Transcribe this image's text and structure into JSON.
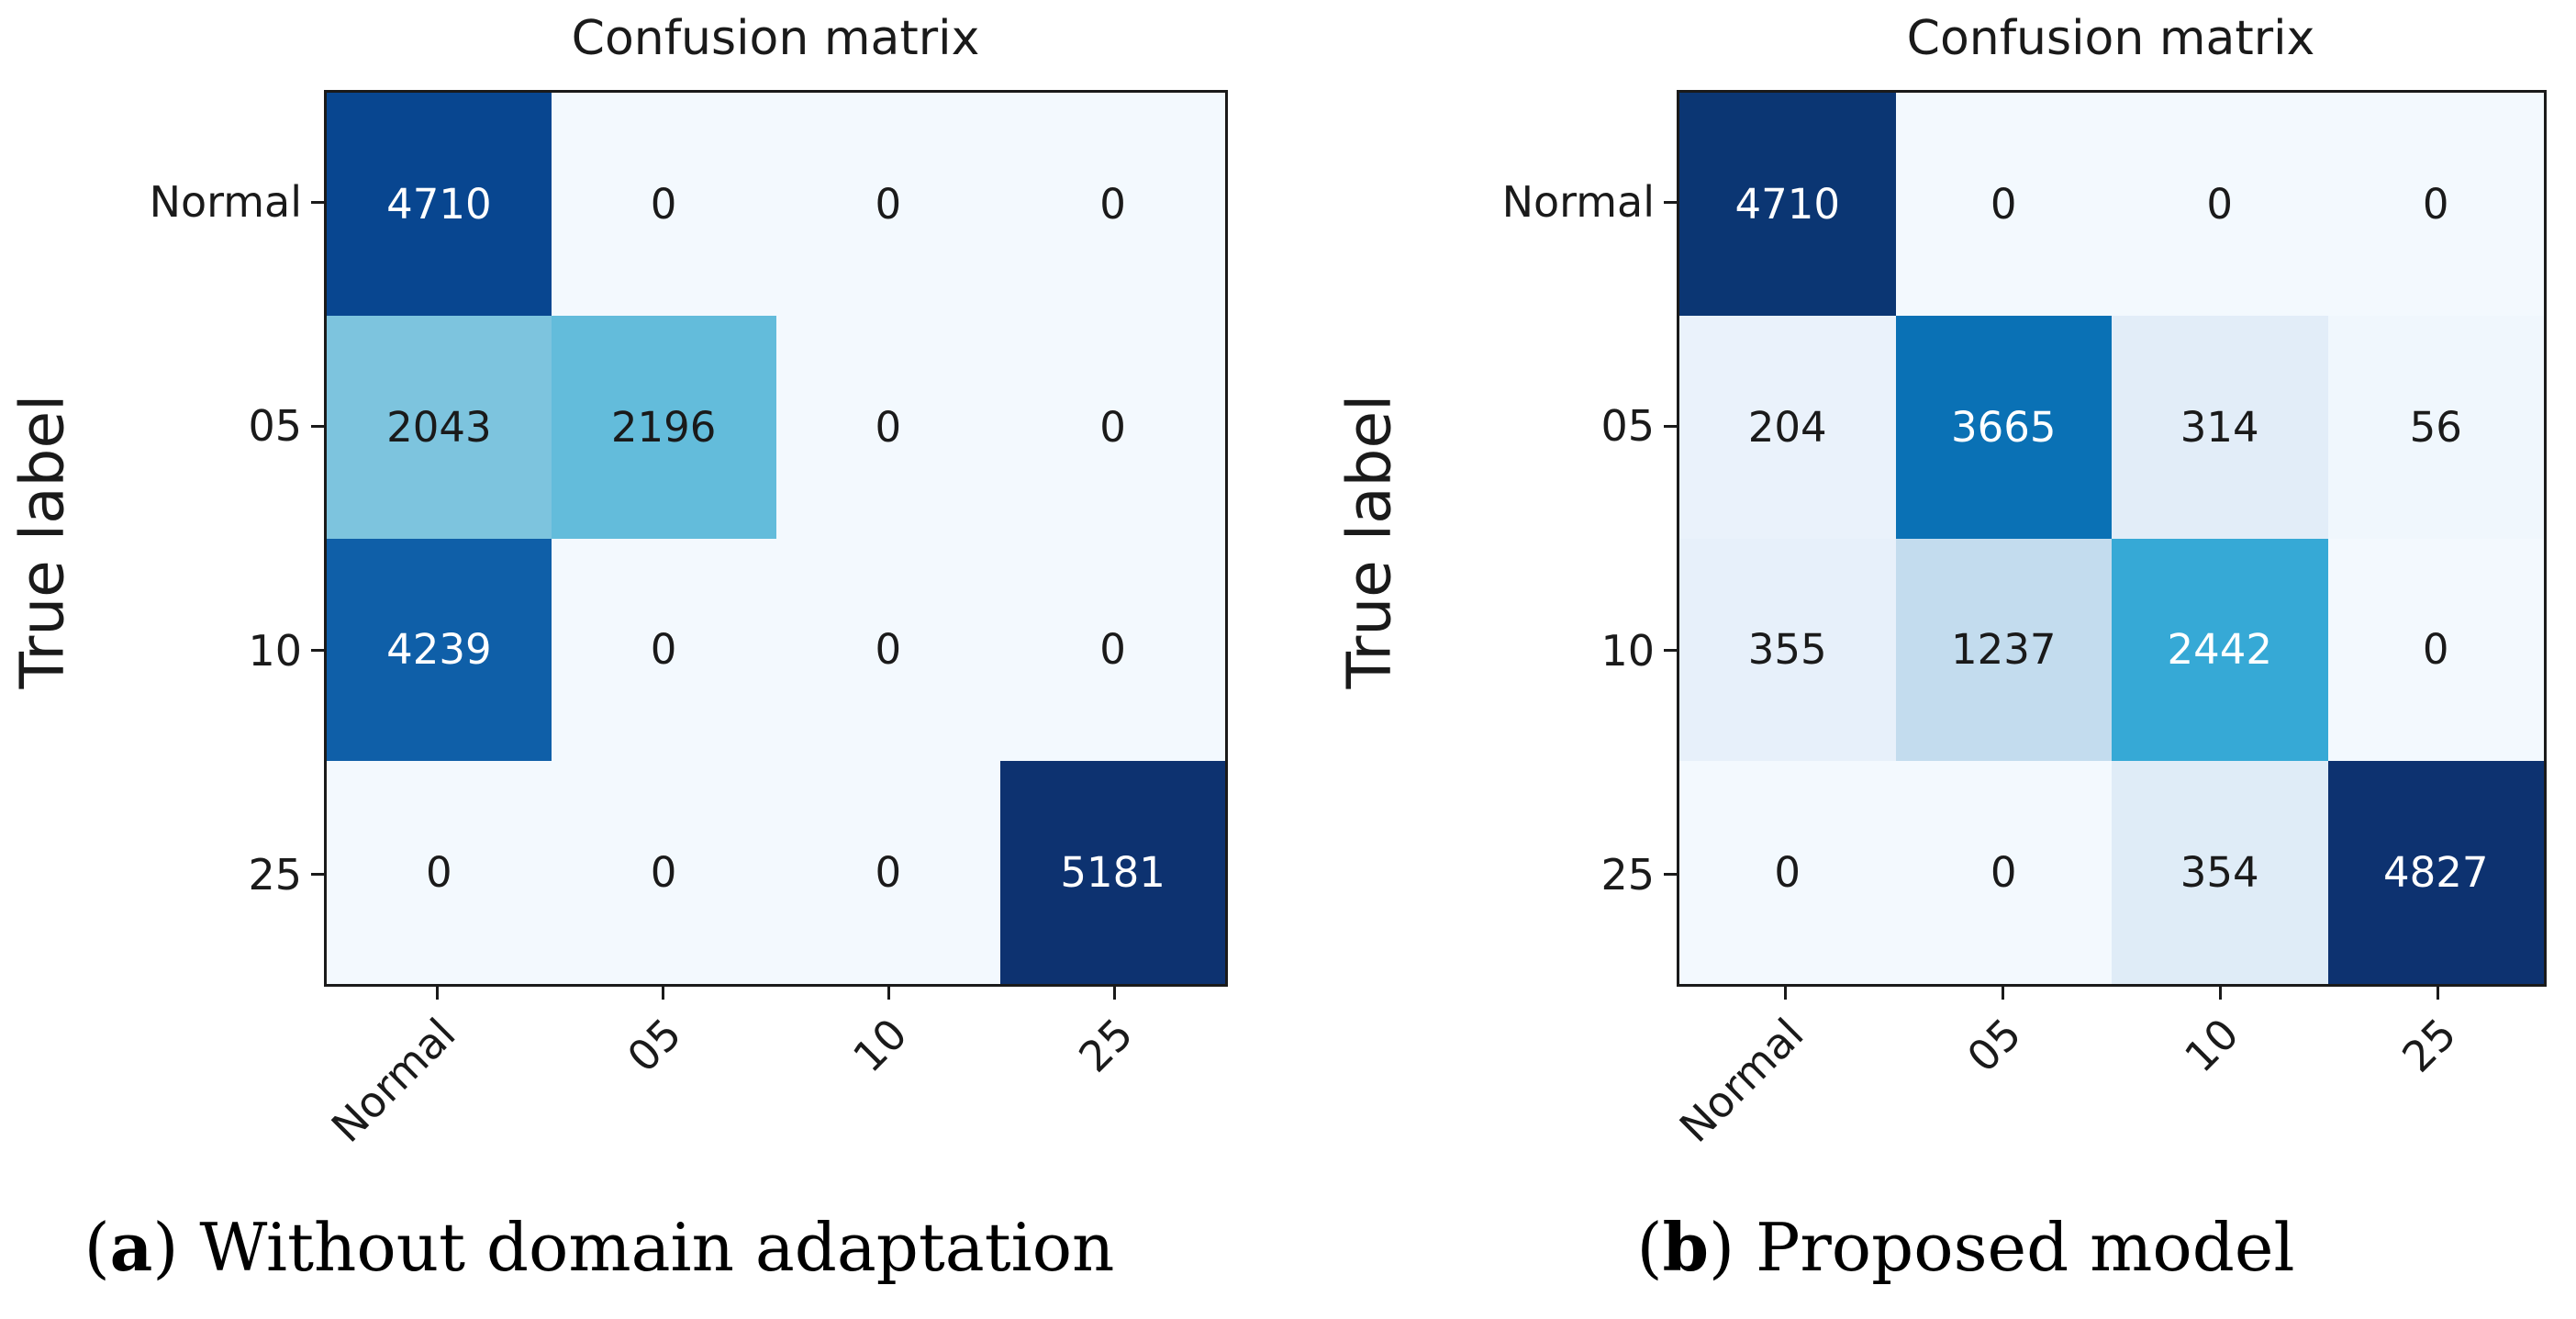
{
  "page": {
    "background": "#ffffff"
  },
  "panels": [
    {
      "title": "Confusion matrix",
      "ylabel": "True label",
      "x_tick_labels": [
        "Normal",
        "05",
        "10",
        "25"
      ],
      "y_tick_labels": [
        "Normal",
        "05",
        "10",
        "25"
      ],
      "caption": {
        "open": "(",
        "letter": "a",
        "rest": ") Without domain adaptation"
      },
      "cells": [
        [
          {
            "v": "4710",
            "bg": "#084690",
            "fg": "#ffffff"
          },
          {
            "v": "0",
            "bg": "#f3f9fe",
            "fg": "#1a1a1a"
          },
          {
            "v": "0",
            "bg": "#f3f9fe",
            "fg": "#1a1a1a"
          },
          {
            "v": "0",
            "bg": "#f3f9fe",
            "fg": "#1a1a1a"
          }
        ],
        [
          {
            "v": "2043",
            "bg": "#7dc4de",
            "fg": "#1a1a1a"
          },
          {
            "v": "2196",
            "bg": "#63bcdb",
            "fg": "#1a1a1a"
          },
          {
            "v": "0",
            "bg": "#f3f9fe",
            "fg": "#1a1a1a"
          },
          {
            "v": "0",
            "bg": "#f3f9fe",
            "fg": "#1a1a1a"
          }
        ],
        [
          {
            "v": "4239",
            "bg": "#0f5fa8",
            "fg": "#ffffff"
          },
          {
            "v": "0",
            "bg": "#f3f9fe",
            "fg": "#1a1a1a"
          },
          {
            "v": "0",
            "bg": "#f3f9fe",
            "fg": "#1a1a1a"
          },
          {
            "v": "0",
            "bg": "#f3f9fe",
            "fg": "#1a1a1a"
          }
        ],
        [
          {
            "v": "0",
            "bg": "#f3f9fe",
            "fg": "#1a1a1a"
          },
          {
            "v": "0",
            "bg": "#f3f9fe",
            "fg": "#1a1a1a"
          },
          {
            "v": "0",
            "bg": "#f3f9fe",
            "fg": "#1a1a1a"
          },
          {
            "v": "5181",
            "bg": "#0d3270",
            "fg": "#ffffff"
          }
        ]
      ]
    },
    {
      "title": "Confusion matrix",
      "ylabel": "True label",
      "x_tick_labels": [
        "Normal",
        "05",
        "10",
        "25"
      ],
      "y_tick_labels": [
        "Normal",
        "05",
        "10",
        "25"
      ],
      "caption": {
        "open": "(",
        "letter": "b",
        "rest": ") Proposed model"
      },
      "cells": [
        [
          {
            "v": "4710",
            "bg": "#0b3673",
            "fg": "#ffffff"
          },
          {
            "v": "0",
            "bg": "#f3f9fe",
            "fg": "#1a1a1a"
          },
          {
            "v": "0",
            "bg": "#f3f9fe",
            "fg": "#1a1a1a"
          },
          {
            "v": "0",
            "bg": "#f3f9fe",
            "fg": "#1a1a1a"
          }
        ],
        [
          {
            "v": "204",
            "bg": "#eaf2fb",
            "fg": "#1a1a1a"
          },
          {
            "v": "3665",
            "bg": "#0a71b5",
            "fg": "#ffffff"
          },
          {
            "v": "314",
            "bg": "#e2edf8",
            "fg": "#1a1a1a"
          },
          {
            "v": "56",
            "bg": "#f0f7fd",
            "fg": "#1a1a1a"
          }
        ],
        [
          {
            "v": "355",
            "bg": "#e7f0fa",
            "fg": "#1a1a1a"
          },
          {
            "v": "1237",
            "bg": "#c3dcee",
            "fg": "#1a1a1a"
          },
          {
            "v": "2442",
            "bg": "#36a9d6",
            "fg": "#ffffff"
          },
          {
            "v": "0",
            "bg": "#f3f9fe",
            "fg": "#1a1a1a"
          }
        ],
        [
          {
            "v": "0",
            "bg": "#f3f9fe",
            "fg": "#1a1a1a"
          },
          {
            "v": "0",
            "bg": "#f3f9fe",
            "fg": "#1a1a1a"
          },
          {
            "v": "354",
            "bg": "#dfecf7",
            "fg": "#1a1a1a"
          },
          {
            "v": "4827",
            "bg": "#0d3270",
            "fg": "#ffffff"
          }
        ]
      ]
    }
  ],
  "chart_data": [
    {
      "type": "heatmap",
      "title": "Confusion matrix",
      "xlabel": "",
      "ylabel": "True label",
      "x_tick_labels": [
        "Normal",
        "05",
        "10",
        "25"
      ],
      "y_tick_labels": [
        "Normal",
        "05",
        "10",
        "25"
      ],
      "matrix": [
        [
          4710,
          0,
          0,
          0
        ],
        [
          2043,
          2196,
          0,
          0
        ],
        [
          4239,
          0,
          0,
          0
        ],
        [
          0,
          0,
          0,
          5181
        ]
      ],
      "caption": "(a) Without domain adaptation",
      "colormap": "Blues",
      "legend": "none",
      "grid": false
    },
    {
      "type": "heatmap",
      "title": "Confusion matrix",
      "xlabel": "",
      "ylabel": "True label",
      "x_tick_labels": [
        "Normal",
        "05",
        "10",
        "25"
      ],
      "y_tick_labels": [
        "Normal",
        "05",
        "10",
        "25"
      ],
      "matrix": [
        [
          4710,
          0,
          0,
          0
        ],
        [
          204,
          3665,
          314,
          56
        ],
        [
          355,
          1237,
          2442,
          0
        ],
        [
          0,
          0,
          354,
          4827
        ]
      ],
      "caption": "(b) Proposed model",
      "colormap": "Blues",
      "legend": "none",
      "grid": false
    }
  ]
}
